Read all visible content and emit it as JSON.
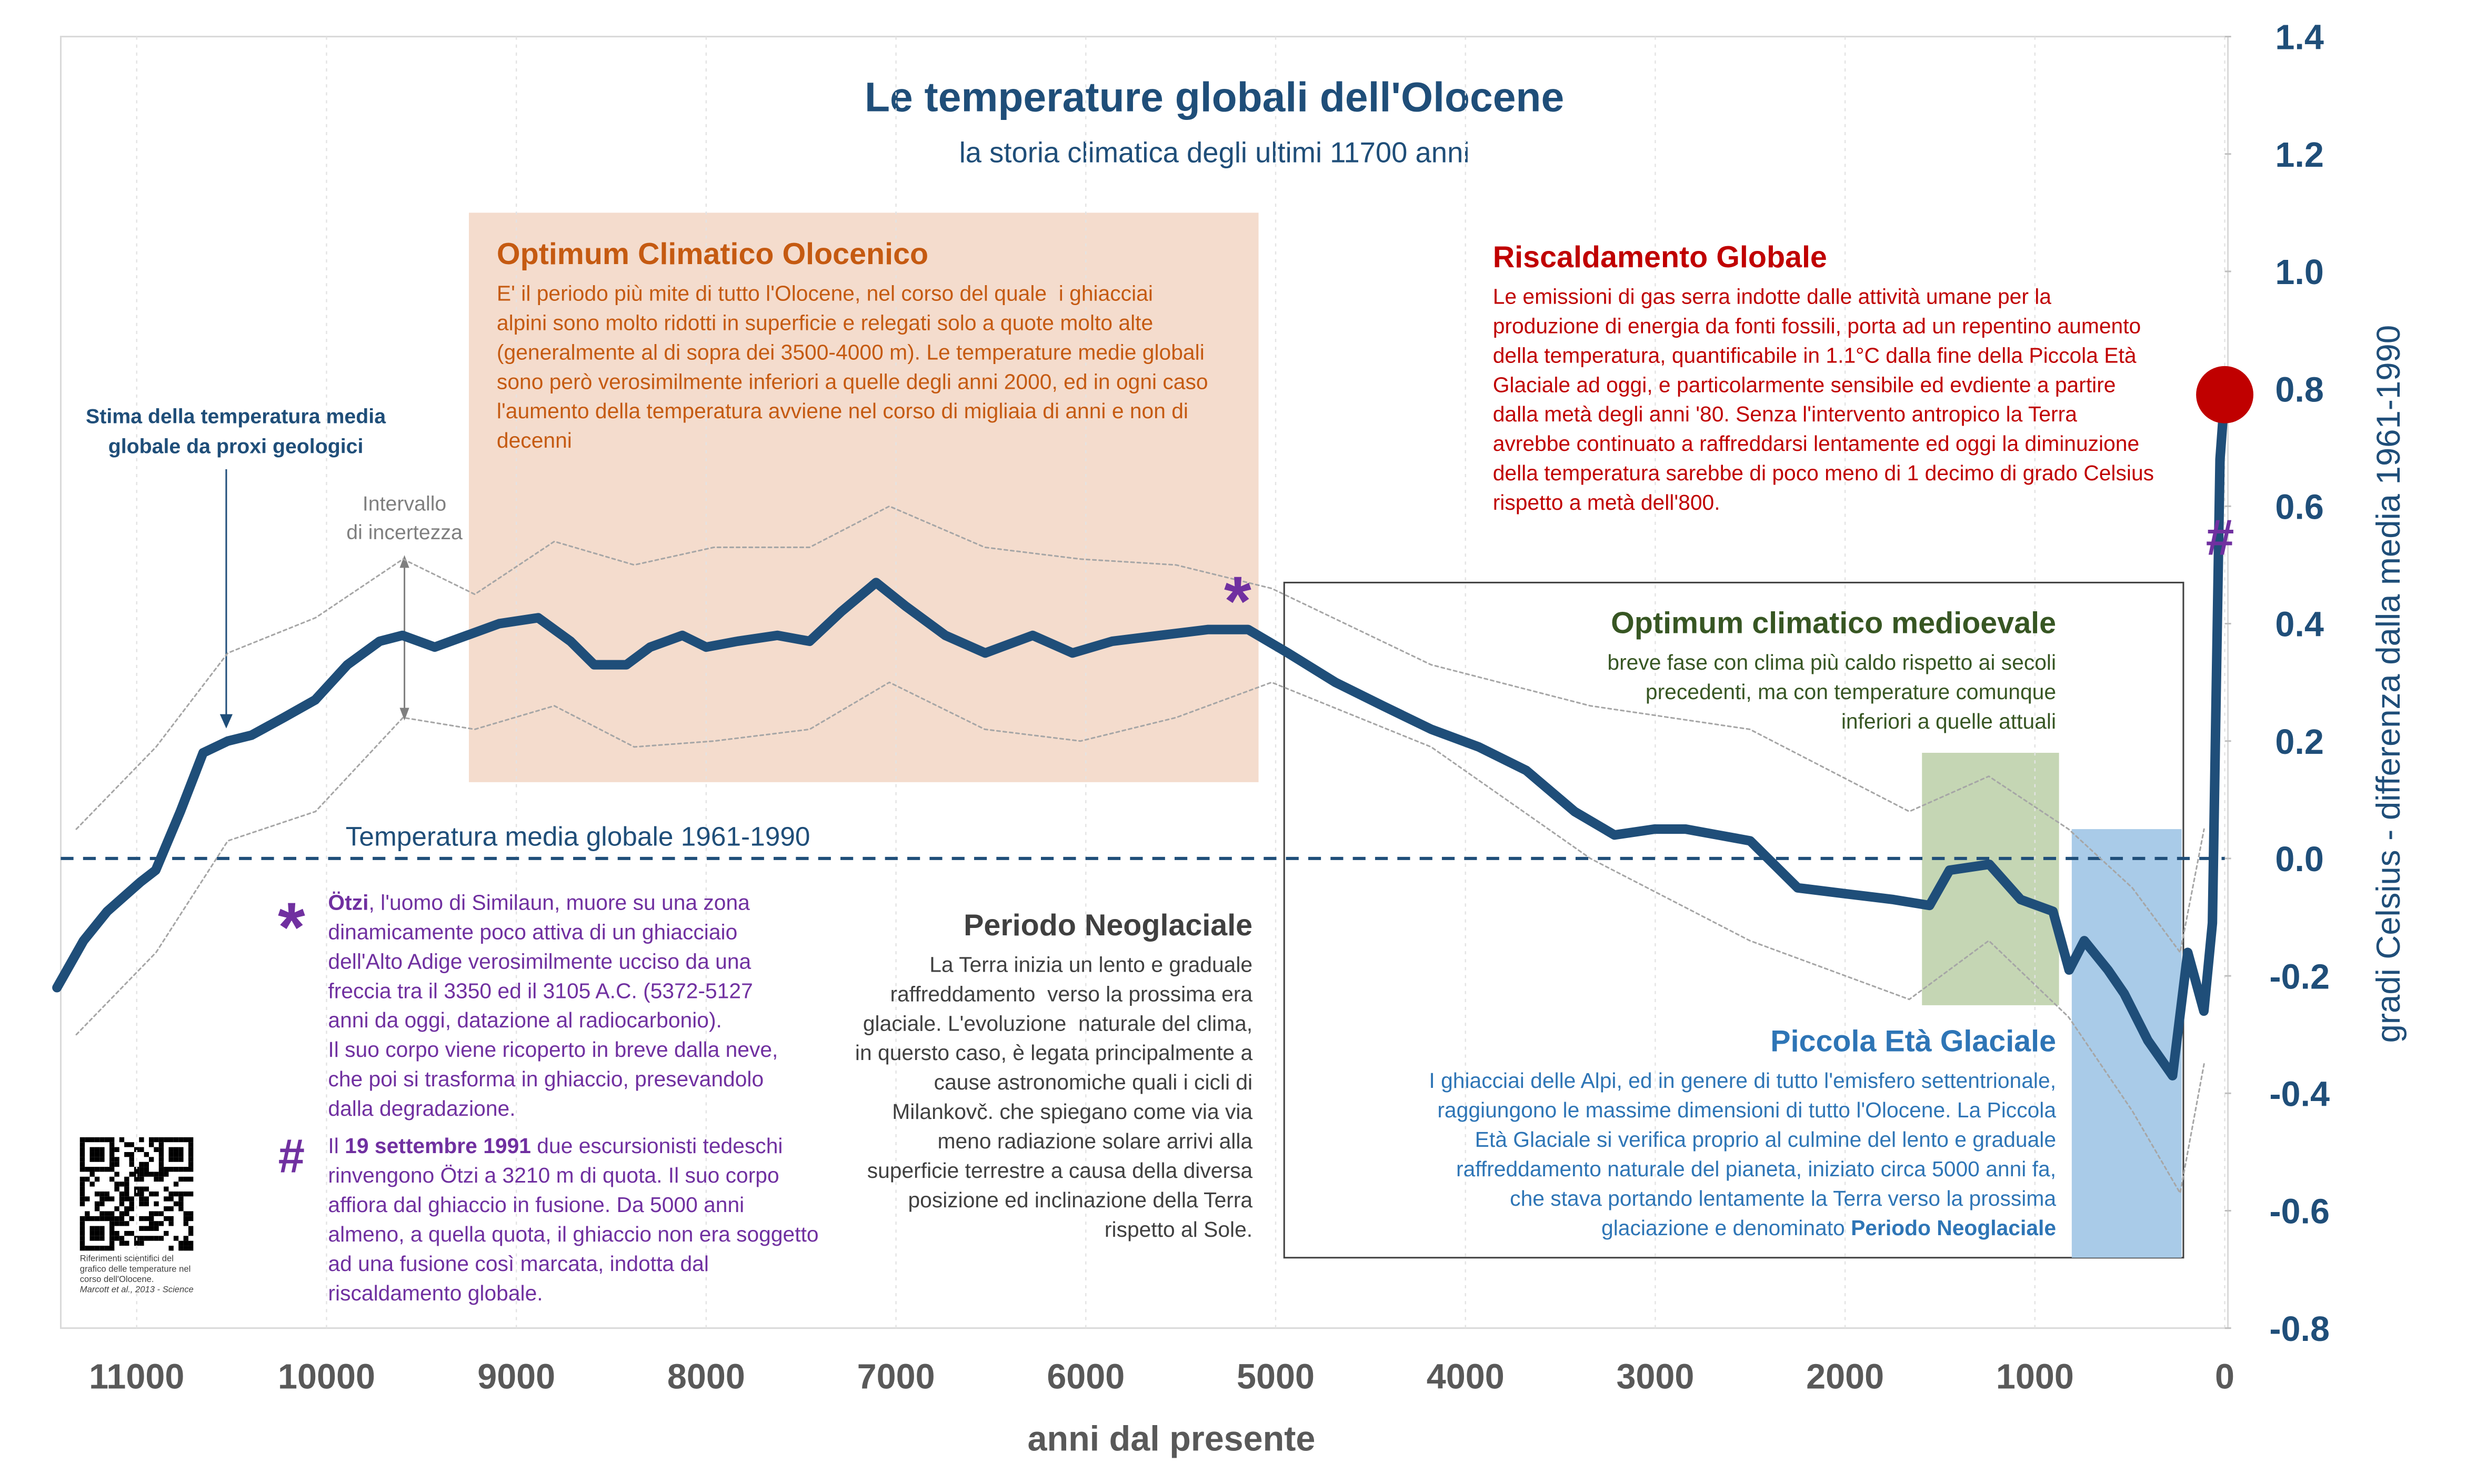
{
  "chart_data": {
    "type": "line",
    "title": "Le temperature globali dell'Olocene",
    "subtitle": "la storia climatica degli ultimi 11700 anni",
    "xlabel": "anni dal presente",
    "ylabel": "gradi Celsius - differenza dalla media 1961-1990",
    "xlim": [
      11400,
      0
    ],
    "ylim": [
      -0.8,
      1.4
    ],
    "xticks": [
      11000,
      10000,
      9000,
      8000,
      7000,
      6000,
      5000,
      4000,
      3000,
      2000,
      1000,
      0
    ],
    "yticks": [
      -0.8,
      -0.6,
      -0.4,
      -0.2,
      {
        "value": 0,
        "label": "0.0"
      },
      0.2,
      0.4,
      0.6,
      0.8,
      {
        "value": 1,
        "label": "1.0"
      },
      1.2,
      1.4
    ],
    "grid": "x",
    "reference_line": {
      "value": 0,
      "label": "Temperatura media globale 1961-1990",
      "color": "#1f4e79"
    },
    "series": [
      {
        "color": "#1f4e79",
        "style": "solid",
        "x": [
          11420,
          11280,
          11155,
          10980,
          10900,
          10770,
          10650,
          10520,
          10395,
          10225,
          10060,
          9890,
          9720,
          9600,
          9430,
          9260,
          9090,
          8885,
          8715,
          8590,
          8420,
          8295,
          8125,
          8000,
          7835,
          7625,
          7455,
          7290,
          7105,
          6950,
          6740,
          6530,
          6280,
          6070,
          5860,
          5610,
          5355,
          5145,
          4935,
          4685,
          4435,
          4180,
          3930,
          3680,
          3425,
          3215,
          3005,
          2840,
          2670,
          2500,
          2250,
          2000,
          1745,
          1555,
          1450,
          1240,
          1075,
          905,
          820,
          740,
          615,
          530,
          405,
          275,
          195,
          110,
          65,
          25,
          0
        ],
        "values": [
          -0.22,
          -0.14,
          -0.09,
          -0.04,
          -0.02,
          0.08,
          0.18,
          0.2,
          0.21,
          0.24,
          0.27,
          0.33,
          0.37,
          0.38,
          0.36,
          0.38,
          0.4,
          0.41,
          0.37,
          0.33,
          0.33,
          0.36,
          0.38,
          0.36,
          0.37,
          0.38,
          0.37,
          0.42,
          0.47,
          0.43,
          0.38,
          0.35,
          0.38,
          0.35,
          0.37,
          0.38,
          0.39,
          0.39,
          0.35,
          0.3,
          0.26,
          0.22,
          0.19,
          0.15,
          0.08,
          0.04,
          0.05,
          0.05,
          0.04,
          0.03,
          -0.05,
          -0.06,
          -0.07,
          -0.08,
          -0.02,
          -0.01,
          -0.07,
          -0.09,
          -0.19,
          -0.14,
          -0.19,
          -0.23,
          -0.31,
          -0.37,
          -0.16,
          -0.26,
          -0.11,
          0.68,
          0.79
        ],
        "end_marker_color": "#c00000"
      },
      {
        "color": "#a6a6a6",
        "style": "dashed",
        "x": [
          11318,
          10898,
          10520,
          10058,
          9597,
          9219,
          8800,
          8379,
          7959,
          7455,
          7035,
          6532,
          6028,
          5525,
          5021,
          4181,
          3342,
          2502,
          1662,
          1243,
          823,
          487,
          235,
          109
        ],
        "values": [
          0.05,
          0.19,
          0.35,
          0.41,
          0.51,
          0.45,
          0.54,
          0.5,
          0.53,
          0.53,
          0.6,
          0.53,
          0.51,
          0.5,
          0.46,
          0.33,
          0.26,
          0.22,
          0.08,
          0.14,
          0.05,
          -0.05,
          -0.16,
          0.05
        ]
      },
      {
        "color": "#a6a6a6",
        "style": "dashed",
        "x": [
          11318,
          10898,
          10520,
          10058,
          9597,
          9219,
          8800,
          8379,
          7959,
          7455,
          7035,
          6532,
          6028,
          5525,
          5021,
          4181,
          3342,
          2502,
          1662,
          1243,
          823,
          487,
          235,
          109
        ],
        "values": [
          -0.3,
          -0.16,
          0.03,
          0.08,
          0.24,
          0.22,
          0.26,
          0.19,
          0.2,
          0.22,
          0.3,
          0.22,
          0.2,
          0.24,
          0.3,
          0.19,
          0,
          -0.14,
          -0.24,
          -0.14,
          -0.27,
          -0.43,
          -0.57,
          -0.35
        ]
      }
    ],
    "regions": [
      {
        "x": [
          9250,
          5090
        ],
        "y": [
          1.1,
          0.13
        ],
        "fill": "#f4dccd"
      },
      {
        "x": [
          4955,
          218
        ],
        "y": [
          0.47,
          -0.68
        ],
        "stroke": "#404040"
      },
      {
        "x": [
          1595,
          873
        ],
        "y": [
          0.18,
          -0.25
        ],
        "fill": "#c5d6b4"
      },
      {
        "x": [
          806,
          227
        ],
        "y": [
          0.05,
          -0.68
        ],
        "fill": "#a9cbe8"
      }
    ],
    "annotations": {
      "stima": [
        "Stima della temperatura media",
        "globale da proxi geologici"
      ],
      "intervallo": [
        "Intervallo",
        "di incertezza"
      ],
      "optimum": {
        "title": "Optimum Climatico Olocenico",
        "lines": [
          "E' il periodo più mite di tutto l'Olocene, nel corso del quale  i ghiacciai",
          "alpini sono molto ridotti in superficie e relegati solo a quote molto alte",
          "(generalmente al di sopra dei 3500-4000 m). Le temperature medie globali",
          "sono però verosimilmente inferiori a quelle degli anni 2000, ed in ogni caso",
          "l'aumento della temperatura avviene nel corso di migliaia di anni e non di",
          "decenni"
        ]
      },
      "riscaldamento": {
        "title": "Riscaldamento Globale",
        "lines": [
          "Le emissioni di gas serra indotte dalle attività umane per la",
          "produzione di energia da fonti fossili, porta ad un repentino aumento",
          "della temperatura, quantificabile in 1.1°C dalla fine della Piccola Età",
          "Glaciale ad oggi, e particolarmente sensibile ed evdiente a partire",
          "dalla metà degli anni '80. Senza l'intervento antropico la Terra",
          "avrebbe continuato a raffreddarsi lentamente ed oggi la diminuzione",
          "della temperatura sarebbe di poco meno di 1 decimo di grado Celsius",
          "rispetto a metà dell'800."
        ]
      },
      "medioevale": {
        "title": "Optimum climatico medioevale",
        "lines": [
          "breve fase con clima più caldo rispetto ai secoli",
          "precedenti, ma con temperature comunque",
          "inferiori a quelle attuali"
        ]
      },
      "piccola": {
        "title": "Piccola Età Glaciale",
        "lines": [
          "I ghiacciai delle Alpi, ed in genere di tutto l'emisfero settentrionale,",
          "raggiungono le massime dimensioni di tutto l'Olocene. La Piccola",
          "Età Glaciale si verifica proprio al culmine del lento e graduale",
          "raffreddamento naturale del pianeta, iniziato circa 5000 anni fa,",
          "che stava portando lentamente la Terra verso la prossima",
          [
            {
              "text": "glaciazione e denominato "
            },
            {
              "text": "Periodo Neoglaciale",
              "bold": true
            }
          ]
        ]
      },
      "neoglaciale": {
        "title": "Periodo Neoglaciale",
        "lines": [
          "La Terra inizia un lento e graduale",
          "raffreddamento  verso la prossima era",
          "glaciale. L'evoluzione  naturale del clima,",
          "in quersto caso, è legata principalmente a",
          "cause astronomiche quali i cicli di",
          "Milankovč. che spiegano come via via",
          "meno radiazione solare arrivi alla",
          "superficie terrestre a causa della diversa",
          "posizione ed inclinazione della Terra",
          "rispetto al Sole."
        ]
      },
      "otzi": {
        "symbol": "*",
        "lines": [
          [
            {
              "text": "Ötzi",
              "bold": true
            },
            {
              "text": ", l'uomo di Similaun, muore su una zona"
            }
          ],
          "dinamicamente poco attiva di un ghiacciaio",
          "dell'Alto Adige verosimilmente ucciso da una",
          "freccia tra il 3350 ed il 3105 A.C. (5372-5127",
          "anni da oggi, datazione al radiocarbonio).",
          "Il suo corpo viene ricoperto in breve dalla neve,",
          "che poi si trasforma in ghiaccio, presevandolo",
          "dalla degradazione."
        ]
      },
      "ritrovamento": {
        "symbol": "#",
        "lines": [
          [
            {
              "text": "Il "
            },
            {
              "text": "19 settembre 1991",
              "bold": true
            },
            {
              "text": " due escursionisti tedeschi"
            }
          ],
          "rinvengono Ötzi a 3210 m di quota. Il suo corpo",
          "affiora dal ghiaccio in fusione. Da 5000 anni",
          "almeno, a quella quota, il ghiaccio non era soggetto",
          "ad una fusione così marcata, indotta dal",
          "riscaldamento globale."
        ]
      },
      "chart_symbols": [
        {
          "text": "*",
          "x": 5200,
          "y": 0.43
        },
        {
          "text": "#",
          "x": 25,
          "y": 0.55
        }
      ],
      "qr_caption": [
        "Riferimenti scientifici del",
        "grafico delle temperature nel",
        "corso dell'Olocene.",
        "Marcott et al., 2013 - Science"
      ]
    }
  }
}
